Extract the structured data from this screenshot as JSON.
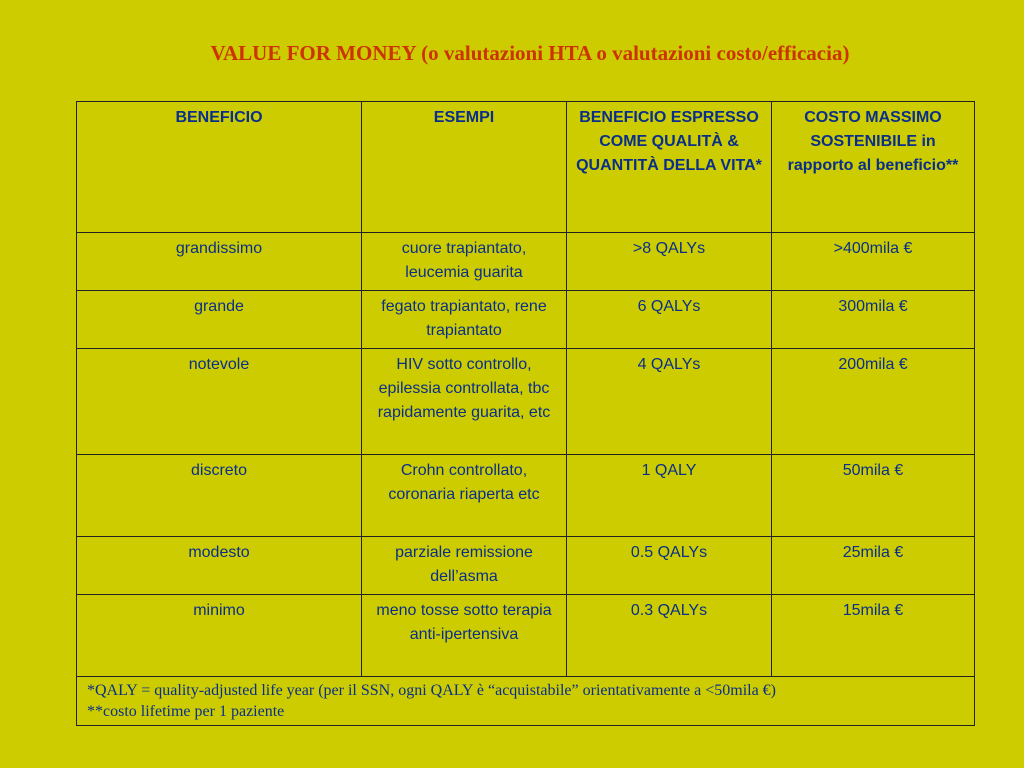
{
  "title": "VALUE FOR MONEY (o valutazioni HTA o valutazioni costo/efficacia)",
  "table": {
    "headers": [
      "BENEFICIO",
      "ESEMPI",
      "BENEFICIO ESPRESSO COME QUALITÀ & QUANTITÀ DELLA VITA*",
      "COSTO MASSIMO SOSTENIBILE in rapporto al beneficio**"
    ],
    "rows": [
      [
        "grandissimo",
        "cuore trapiantato, leucemia guarita",
        ">8 QALYs",
        ">400mila €"
      ],
      [
        "grande",
        "fegato trapiantato, rene trapiantato",
        "6 QALYs",
        "300mila €"
      ],
      [
        "notevole",
        "HIV sotto controllo, epilessia controllata, tbc rapidamente guarita, etc",
        "4 QALYs",
        "200mila €"
      ],
      [
        "discreto",
        "Crohn controllato, coronaria riaperta etc",
        "1 QALY",
        "50mila €"
      ],
      [
        "modesto",
        "parziale remissione dell’asma",
        "0.5 QALYs",
        "25mila €"
      ],
      [
        "minimo",
        "meno tosse sotto terapia anti-ipertensiva",
        "0.3 QALYs",
        "15mila €"
      ]
    ],
    "footnotes": [
      "*QALY = quality-adjusted life year (per il SSN, ogni QALY è “acquistabile” orientativamente a <50mila €)",
      "**costo lifetime per 1 paziente"
    ]
  }
}
